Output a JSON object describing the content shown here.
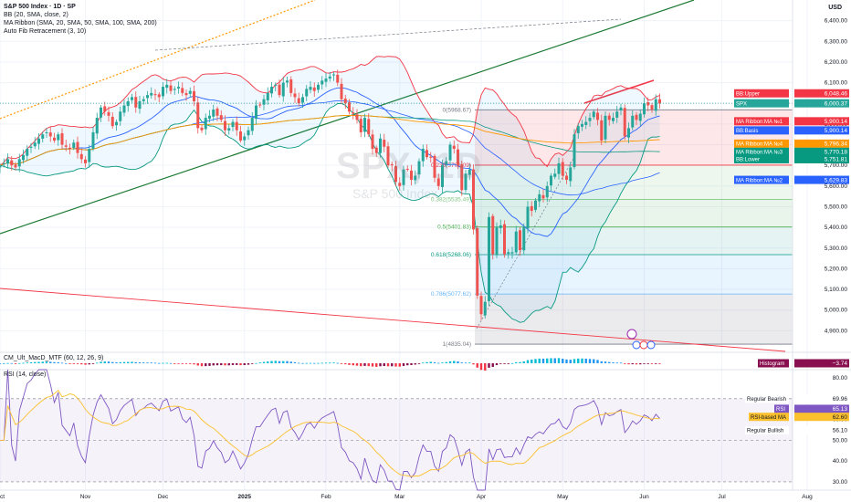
{
  "header": {
    "title": "S&P 500 Index · 1D · SP",
    "indicators": [
      "BB (20, SMA, close, 2)",
      "MA Ribbon (SMA, 20, SMA, 50, SMA, 100, SMA, 200)",
      "Auto Fib Retracement (3, 10)"
    ]
  },
  "watermark": {
    "symbol": "SPX, 1D",
    "name": "S&P 500 Index"
  },
  "currency_label": "USD",
  "colors": {
    "bull": "#26a69a",
    "bear": "#ef5350",
    "bb_band": "#f23645",
    "bb_basis": "#2962ff",
    "ma20": "#f23645",
    "ma50": "#2962ff",
    "ma100": "#089981",
    "ma200": "#ff9800",
    "trend_green": "#1e7b34",
    "rsi_line": "#7e57c2",
    "rsi_ma": "#fbc02d"
  },
  "chart_data": {
    "type": "candlestick",
    "symbol": "SPX",
    "timeframe": "1D",
    "ylim": [
      4800,
      6500
    ],
    "y_ticks": [
      4900,
      5000,
      5100,
      5200,
      5300,
      5400,
      5500,
      5600,
      5700,
      5800,
      5900,
      6000,
      6100,
      6200,
      6300,
      6400
    ],
    "y_tick_labels": [
      "4,900.00",
      "5,000.00",
      "5,100.00",
      "5,200.00",
      "5,300.00",
      "5,400.00",
      "5,500.00",
      "5,600.00",
      "5,700.00",
      "5,800.00",
      "5,900.00",
      "6,000.00",
      "6,100.00",
      "6,200.00",
      "6,300.00",
      "6,400.00"
    ],
    "x_labels": [
      {
        "label": "Oct",
        "idx": 0
      },
      {
        "label": "Nov",
        "idx": 22
      },
      {
        "label": "Dec",
        "idx": 42
      },
      {
        "label": "2025",
        "idx": 63
      },
      {
        "label": "Feb",
        "idx": 84
      },
      {
        "label": "Mar",
        "idx": 103
      },
      {
        "label": "Apr",
        "idx": 124
      },
      {
        "label": "May",
        "idx": 145
      },
      {
        "label": "Jun",
        "idx": 166
      },
      {
        "label": "Jul",
        "idx": 186
      },
      {
        "label": "Aug",
        "idx": 208
      }
    ],
    "closes": [
      5700,
      5710,
      5730,
      5700,
      5690,
      5730,
      5750,
      5780,
      5790,
      5810,
      5830,
      5850,
      5860,
      5840,
      5820,
      5850,
      5800,
      5790,
      5780,
      5810,
      5760,
      5730,
      5710,
      5780,
      5860,
      5930,
      5980,
      5960,
      5940,
      5890,
      5910,
      5960,
      5990,
      6010,
      6030,
      5980,
      6010,
      6020,
      6040,
      6050,
      6040,
      6030,
      6080,
      6090,
      6060,
      6070,
      6080,
      6050,
      6040,
      6060,
      6010,
      5880,
      5870,
      5930,
      5940,
      5970,
      5940,
      5920,
      5870,
      5880,
      5910,
      5870,
      5820,
      5840,
      5870,
      5930,
      5990,
      5990,
      6020,
      6050,
      6080,
      6090,
      6040,
      6100,
      6110,
      6050,
      6030,
      6000,
      6030,
      6070,
      6080,
      6060,
      6090,
      6110,
      6120,
      6130,
      6140,
      6100,
      6020,
      6000,
      5960,
      5950,
      5920,
      5860,
      5930,
      5850,
      5780,
      5760,
      5830,
      5790,
      5700,
      5700,
      5620,
      5600,
      5680,
      5680,
      5630,
      5650,
      5720,
      5780,
      5740,
      5740,
      5640,
      5600,
      5700,
      5720,
      5800,
      5780,
      5700,
      5580,
      5660,
      5680,
      5390,
      5070,
      4980,
      5040,
      5450,
      5270,
      5400,
      5410,
      5270,
      5280,
      5280,
      5380,
      5290,
      5400,
      5500,
      5480,
      5530,
      5560,
      5540,
      5600,
      5650,
      5660,
      5710,
      5650,
      5630,
      5690,
      5850,
      5890,
      5900,
      5910,
      5930,
      5960,
      5920,
      5820,
      5940,
      5920,
      5930,
      5960,
      5980,
      5840,
      5880,
      5940,
      5920,
      5950,
      6000,
      5990,
      5970,
      6020,
      6000
    ],
    "series": [
      {
        "name": "MA Ribbon:MA №1",
        "value": 5900.14
      },
      {
        "name": "MA Ribbon:MA №2",
        "value": 5629.83
      },
      {
        "name": "MA Ribbon:MA №3",
        "value": 5770.18
      },
      {
        "name": "MA Ribbon:MA №4",
        "value": 5796.34
      },
      {
        "name": "BB:Upper",
        "value": 6048.46
      },
      {
        "name": "BB:Basis",
        "value": 5900.14
      },
      {
        "name": "BB:Lower",
        "value": 5751.81
      }
    ],
    "fib_levels": [
      {
        "ratio": "0",
        "price": 5968.67,
        "label": "0(5968.67)"
      },
      {
        "ratio": "0.236",
        "price": 5701.09,
        "label": "0.236(5701.09)"
      },
      {
        "ratio": "0.382",
        "price": 5535.49,
        "label": "0.382(5535.49)"
      },
      {
        "ratio": "0.5",
        "price": 5401.83,
        "label": "0.5(5401.83)"
      },
      {
        "ratio": "0.618",
        "price": 5268.06,
        "label": "0.618(5268.06)"
      },
      {
        "ratio": "0.786",
        "price": 5077.62,
        "label": "0.786(5077.62)"
      },
      {
        "ratio": "1",
        "price": 4835.04,
        "label": "1(4835.04)"
      }
    ],
    "last_price": 6000.37,
    "macd": {
      "title": "CM_Ult_MacD_MTF (60, 12, 26, 9)",
      "histogram_label": "Histogram",
      "histogram_value": "−3.74"
    },
    "rsi": {
      "title": "RSI (14, close)",
      "ylim": [
        26,
        84
      ],
      "y_ticks": [
        30,
        40,
        50,
        60,
        70,
        80
      ],
      "y_tick_labels": [
        "30.00",
        "40.00",
        "50.00",
        "60.00",
        "70.00",
        "80.00"
      ],
      "rsi_value": 65.13,
      "rsi_ma_value": 62.6,
      "bearish_value": 69.96,
      "bullish_value": 56.1,
      "rsi_label": "RSI",
      "rsi_ma_label": "RSI-based MA",
      "bearish_label": "Regular Bearish",
      "bullish_label": "Regular Bullish"
    }
  },
  "price_tags": [
    {
      "text": "BB:Upper",
      "value": "6,048.46",
      "color": "#f23645"
    },
    {
      "text": "SPX",
      "value": "6,000.37",
      "color": "#26a69a"
    },
    {
      "text": "MA Ribbon:MA №1",
      "value": "5,900.14",
      "color": "#f23645"
    },
    {
      "text": "BB:Basis",
      "value": "5,900.14",
      "color": "#2962ff"
    },
    {
      "text": "MA Ribbon:MA №4",
      "value": "5,796.34",
      "color": "#ff9800"
    },
    {
      "text": "MA Ribbon:MA №3",
      "value": "5,770.18",
      "color": "#089981"
    },
    {
      "text": "BB:Lower",
      "value": "5,751.81",
      "color": "#089981"
    },
    {
      "text": "MA Ribbon:MA №2",
      "value": "5,629.83",
      "color": "#2962ff"
    }
  ]
}
